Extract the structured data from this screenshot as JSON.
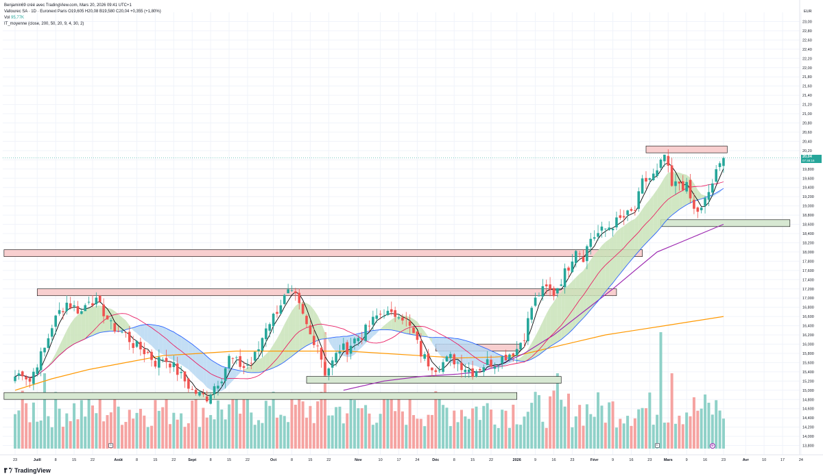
{
  "header": {
    "line1": "Benjamin69 créé avec TradingView.com, Mars 20, 2026 09:41 UTC+1",
    "line2_prefix": "Vallourec SA · 1D · Euronext Paris  O19,605  H20,08  B19,580  C20,04  +0,355 (+1,80%)",
    "vol_label": "Vol",
    "vol_value": "95,77K",
    "line4": "IT_moyenne (close, 200, 50, 20, 9, 4, 30, 2)"
  },
  "footer": {
    "brand": "TradingView"
  },
  "axis": {
    "currency": "EUR"
  },
  "last_price": {
    "value": "20,04",
    "countdown": "07:48:16"
  },
  "badges": {
    "earnings": "E",
    "flag": "⊕"
  },
  "colors": {
    "up": "#26a69a",
    "down": "#ef5350",
    "vol_up": "#8fd1c8",
    "vol_down": "#f5a3a1",
    "sma_fast": "#000000",
    "sma_20": "#e91e63",
    "sma_50": "#2962ff",
    "sma_200": "#9c27b0",
    "sma_long": "#ff9800",
    "zone_res_fill": "#f8cfcf",
    "zone_sup_fill": "#d7e8d2",
    "ribbon_bull": "#c9e3b8",
    "ribbon_bear": "#b9d8f2"
  },
  "chart_data": {
    "type": "candlestick",
    "symbol": "Vallourec SA",
    "timeframe": "1D",
    "exchange": "Euronext Paris",
    "y_axis": {
      "ticks": [
        "13,800",
        "14,000",
        "14,200",
        "14,400",
        "14,600",
        "14,800",
        "15,000",
        "15,200",
        "15,400",
        "15,600",
        "15,800",
        "16,000",
        "16,200",
        "16,400",
        "16,600",
        "16,800",
        "17,000",
        "17,200",
        "17,400",
        "17,600",
        "17,800",
        "18,000",
        "18,200",
        "18,400",
        "18,600",
        "18,800",
        "19,000",
        "19,200",
        "19,400",
        "19,600",
        "19,800",
        "20,00",
        "20,20",
        "20,40",
        "20,60",
        "20,80",
        "21,00",
        "21,20",
        "21,40",
        "21,60",
        "21,80",
        "22,00",
        "22,20",
        "22,40",
        "22,60",
        "22,80",
        "23,00"
      ],
      "range": [
        13.6,
        23.2
      ]
    },
    "x_axis": {
      "ticks": [
        {
          "label": "23",
          "idx": 0
        },
        {
          "label": "Juill",
          "idx": 6
        },
        {
          "label": "8",
          "idx": 11
        },
        {
          "label": "15",
          "idx": 16
        },
        {
          "label": "22",
          "idx": 21
        },
        {
          "label": "Août",
          "idx": 28
        },
        {
          "label": "8",
          "idx": 33
        },
        {
          "label": "15",
          "idx": 38
        },
        {
          "label": "22",
          "idx": 43
        },
        {
          "label": "Sept",
          "idx": 48
        },
        {
          "label": "8",
          "idx": 53
        },
        {
          "label": "15",
          "idx": 58
        },
        {
          "label": "22",
          "idx": 63
        },
        {
          "label": "Oct",
          "idx": 70
        },
        {
          "label": "8",
          "idx": 75
        },
        {
          "label": "15",
          "idx": 80
        },
        {
          "label": "22",
          "idx": 85
        },
        {
          "label": "Nov",
          "idx": 93
        },
        {
          "label": "10",
          "idx": 99
        },
        {
          "label": "17",
          "idx": 104
        },
        {
          "label": "24",
          "idx": 109
        },
        {
          "label": "Déc",
          "idx": 114
        },
        {
          "label": "8",
          "idx": 119
        },
        {
          "label": "15",
          "idx": 124
        },
        {
          "label": "22",
          "idx": 129
        },
        {
          "label": "2026",
          "idx": 136
        },
        {
          "label": "9",
          "idx": 141
        },
        {
          "label": "16",
          "idx": 146
        },
        {
          "label": "23",
          "idx": 151
        },
        {
          "label": "Févr",
          "idx": 157
        },
        {
          "label": "9",
          "idx": 162
        },
        {
          "label": "16",
          "idx": 167
        },
        {
          "label": "23",
          "idx": 172
        },
        {
          "label": "Mars",
          "idx": 177
        },
        {
          "label": "9",
          "idx": 182
        },
        {
          "label": "16",
          "idx": 187
        },
        {
          "label": "23",
          "idx": 192
        },
        {
          "label": "Avr",
          "idx": 198
        },
        {
          "label": "10",
          "idx": 203
        },
        {
          "label": "17",
          "idx": 208
        },
        {
          "label": "24",
          "idx": 213
        }
      ]
    },
    "close_path": [
      [
        0,
        15.3
      ],
      [
        2,
        15.4
      ],
      [
        4,
        15.2
      ],
      [
        6,
        15.6
      ],
      [
        8,
        15.9
      ],
      [
        10,
        16.4
      ],
      [
        12,
        16.7
      ],
      [
        14,
        16.9
      ],
      [
        16,
        16.8
      ],
      [
        18,
        16.7
      ],
      [
        20,
        17.0
      ],
      [
        22,
        16.9
      ],
      [
        24,
        16.7
      ],
      [
        26,
        16.4
      ],
      [
        28,
        16.3
      ],
      [
        30,
        16.2
      ],
      [
        32,
        16.0
      ],
      [
        34,
        15.9
      ],
      [
        36,
        15.8
      ],
      [
        38,
        15.6
      ],
      [
        40,
        15.7
      ],
      [
        42,
        15.6
      ],
      [
        44,
        15.4
      ],
      [
        46,
        15.2
      ],
      [
        48,
        15.0
      ],
      [
        50,
        14.9
      ],
      [
        52,
        14.85
      ],
      [
        54,
        15.1
      ],
      [
        56,
        15.3
      ],
      [
        58,
        15.7
      ],
      [
        60,
        15.6
      ],
      [
        62,
        15.5
      ],
      [
        64,
        15.6
      ],
      [
        66,
        15.9
      ],
      [
        68,
        16.4
      ],
      [
        70,
        16.6
      ],
      [
        72,
        16.9
      ],
      [
        74,
        17.1
      ],
      [
        76,
        17.0
      ],
      [
        78,
        16.6
      ],
      [
        80,
        16.2
      ],
      [
        82,
        16.0
      ],
      [
        84,
        15.4
      ],
      [
        86,
        15.6
      ],
      [
        88,
        15.9
      ],
      [
        90,
        15.9
      ],
      [
        92,
        16.1
      ],
      [
        94,
        16.2
      ],
      [
        96,
        16.4
      ],
      [
        98,
        16.6
      ],
      [
        100,
        16.7
      ],
      [
        102,
        16.6
      ],
      [
        104,
        16.7
      ],
      [
        106,
        16.5
      ],
      [
        108,
        16.2
      ],
      [
        110,
        15.8
      ],
      [
        112,
        15.6
      ],
      [
        114,
        15.5
      ],
      [
        116,
        15.6
      ],
      [
        118,
        15.7
      ],
      [
        120,
        15.6
      ],
      [
        122,
        15.5
      ],
      [
        124,
        15.4
      ],
      [
        126,
        15.5
      ],
      [
        128,
        15.6
      ],
      [
        130,
        15.6
      ],
      [
        132,
        15.7
      ],
      [
        134,
        15.8
      ],
      [
        136,
        15.9
      ],
      [
        138,
        16.2
      ],
      [
        140,
        16.8
      ],
      [
        142,
        17.1
      ],
      [
        144,
        17.2
      ],
      [
        146,
        17.1
      ],
      [
        148,
        17.4
      ],
      [
        150,
        17.7
      ],
      [
        152,
        18.1
      ],
      [
        154,
        17.9
      ],
      [
        156,
        18.3
      ],
      [
        158,
        18.4
      ],
      [
        160,
        18.5
      ],
      [
        162,
        18.6
      ],
      [
        164,
        18.7
      ],
      [
        166,
        18.8
      ],
      [
        168,
        18.9
      ],
      [
        170,
        19.5
      ],
      [
        172,
        19.6
      ],
      [
        174,
        19.7
      ],
      [
        176,
        20.1
      ],
      [
        178,
        19.4
      ],
      [
        180,
        19.5
      ],
      [
        182,
        19.4
      ],
      [
        184,
        18.9
      ],
      [
        186,
        18.9
      ],
      [
        188,
        19.3
      ],
      [
        190,
        19.7
      ],
      [
        192,
        20.04
      ]
    ],
    "sma_200_path": [
      [
        89,
        15.0
      ],
      [
        100,
        15.2
      ],
      [
        110,
        15.3
      ],
      [
        120,
        15.35
      ],
      [
        126,
        15.4
      ],
      [
        130,
        15.5
      ],
      [
        138,
        15.8
      ],
      [
        146,
        16.2
      ],
      [
        154,
        16.7
      ],
      [
        162,
        17.2
      ],
      [
        168,
        17.6
      ],
      [
        174,
        18.0
      ],
      [
        180,
        18.2
      ],
      [
        186,
        18.4
      ],
      [
        192,
        18.6
      ]
    ],
    "sma_long_path": [
      [
        0,
        15.0
      ],
      [
        10,
        15.25
      ],
      [
        20,
        15.45
      ],
      [
        30,
        15.6
      ],
      [
        40,
        15.75
      ],
      [
        50,
        15.8
      ],
      [
        60,
        15.85
      ],
      [
        70,
        15.85
      ],
      [
        80,
        15.85
      ],
      [
        90,
        15.85
      ],
      [
        100,
        15.8
      ],
      [
        110,
        15.75
      ],
      [
        120,
        15.7
      ],
      [
        130,
        15.72
      ],
      [
        136,
        15.75
      ],
      [
        144,
        15.9
      ],
      [
        152,
        16.05
      ],
      [
        160,
        16.2
      ],
      [
        168,
        16.3
      ],
      [
        176,
        16.4
      ],
      [
        184,
        16.5
      ],
      [
        192,
        16.6
      ]
    ],
    "zones": [
      {
        "kind": "resistance",
        "x0": 171,
        "x1": 193,
        "top": 20.3,
        "bottom": 20.2
      },
      {
        "kind": "resistance",
        "x0": -3,
        "x1": 170,
        "top": 18.05,
        "bottom": 17.9
      },
      {
        "kind": "resistance",
        "x0": 6,
        "x1": 163,
        "top": 17.2,
        "bottom": 17.1
      },
      {
        "kind": "resistance",
        "x0": 114,
        "x1": 137,
        "top": 16.0,
        "bottom": 15.95
      },
      {
        "kind": "support",
        "x0": 175,
        "x1": 210,
        "top": 18.7,
        "bottom": 18.6
      },
      {
        "kind": "support",
        "x0": 79,
        "x1": 148,
        "top": 15.3,
        "bottom": 15.2
      },
      {
        "kind": "support",
        "x0": -3,
        "x1": 136,
        "top": 14.95,
        "bottom": 14.85
      }
    ],
    "volume_range": [
      0,
      1
    ],
    "last_close": 20.04,
    "earnings_idx": [
      26,
      174
    ],
    "flag_idx": 189
  }
}
